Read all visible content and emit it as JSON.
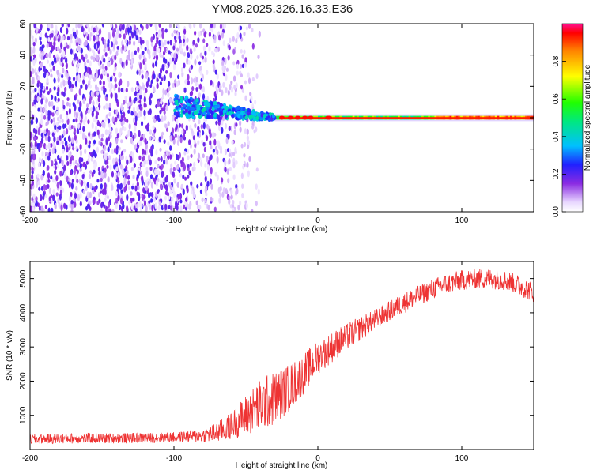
{
  "chart_data": [
    {
      "type": "heatmap",
      "title": "YM08.2025.326.16.33.E36",
      "xlabel": "Height of straight line (km)",
      "ylabel": "Frequency (Hz)",
      "xlim": [
        -200,
        150
      ],
      "ylim": [
        -60,
        60
      ],
      "xticks": [
        -200,
        -100,
        0,
        100
      ],
      "yticks": [
        -60,
        -40,
        -20,
        0,
        20,
        40,
        60
      ],
      "colorbar": {
        "label": "Normalized spectral amplitude",
        "range": [
          0,
          1
        ],
        "ticks": [
          0.0,
          0.2,
          0.4,
          0.6,
          0.8
        ]
      },
      "features": {
        "scatter_region_x": [
          -200,
          -60
        ],
        "scatter_region_y": [
          -60,
          60
        ],
        "transition_region_x": [
          -100,
          -30
        ],
        "band_center_hz": 0,
        "band_region_x": [
          -30,
          150
        ],
        "band_peak_amplitude": 0.9
      }
    },
    {
      "type": "line",
      "xlabel": "Height of straight line (km)",
      "ylabel": "SNR (10 * v/v)",
      "xlim": [
        -200,
        150
      ],
      "ylim": [
        0,
        5500
      ],
      "xticks": [
        -200,
        -100,
        0,
        100
      ],
      "yticks": [
        1000,
        2000,
        3000,
        4000,
        5000
      ],
      "series": [
        {
          "name": "SNR",
          "color": "#ee3333",
          "x": [
            -200,
            -180,
            -160,
            -140,
            -120,
            -100,
            -80,
            -70,
            -60,
            -50,
            -40,
            -30,
            -20,
            -10,
            0,
            10,
            20,
            30,
            40,
            50,
            60,
            70,
            80,
            90,
            100,
            110,
            120,
            130,
            140,
            150
          ],
          "y": [
            300,
            320,
            330,
            330,
            340,
            360,
            400,
            500,
            700,
            1000,
            1300,
            1500,
            1800,
            2200,
            2700,
            3000,
            3300,
            3550,
            3800,
            4050,
            4300,
            4500,
            4700,
            4850,
            4950,
            5000,
            5000,
            4950,
            4800,
            4600
          ],
          "noise": [
            150,
            150,
            150,
            150,
            150,
            150,
            200,
            300,
            400,
            600,
            800,
            800,
            700,
            600,
            500,
            450,
            400,
            350,
            300,
            300,
            300,
            300,
            300,
            300,
            300,
            300,
            300,
            300,
            300,
            300
          ]
        }
      ]
    }
  ]
}
